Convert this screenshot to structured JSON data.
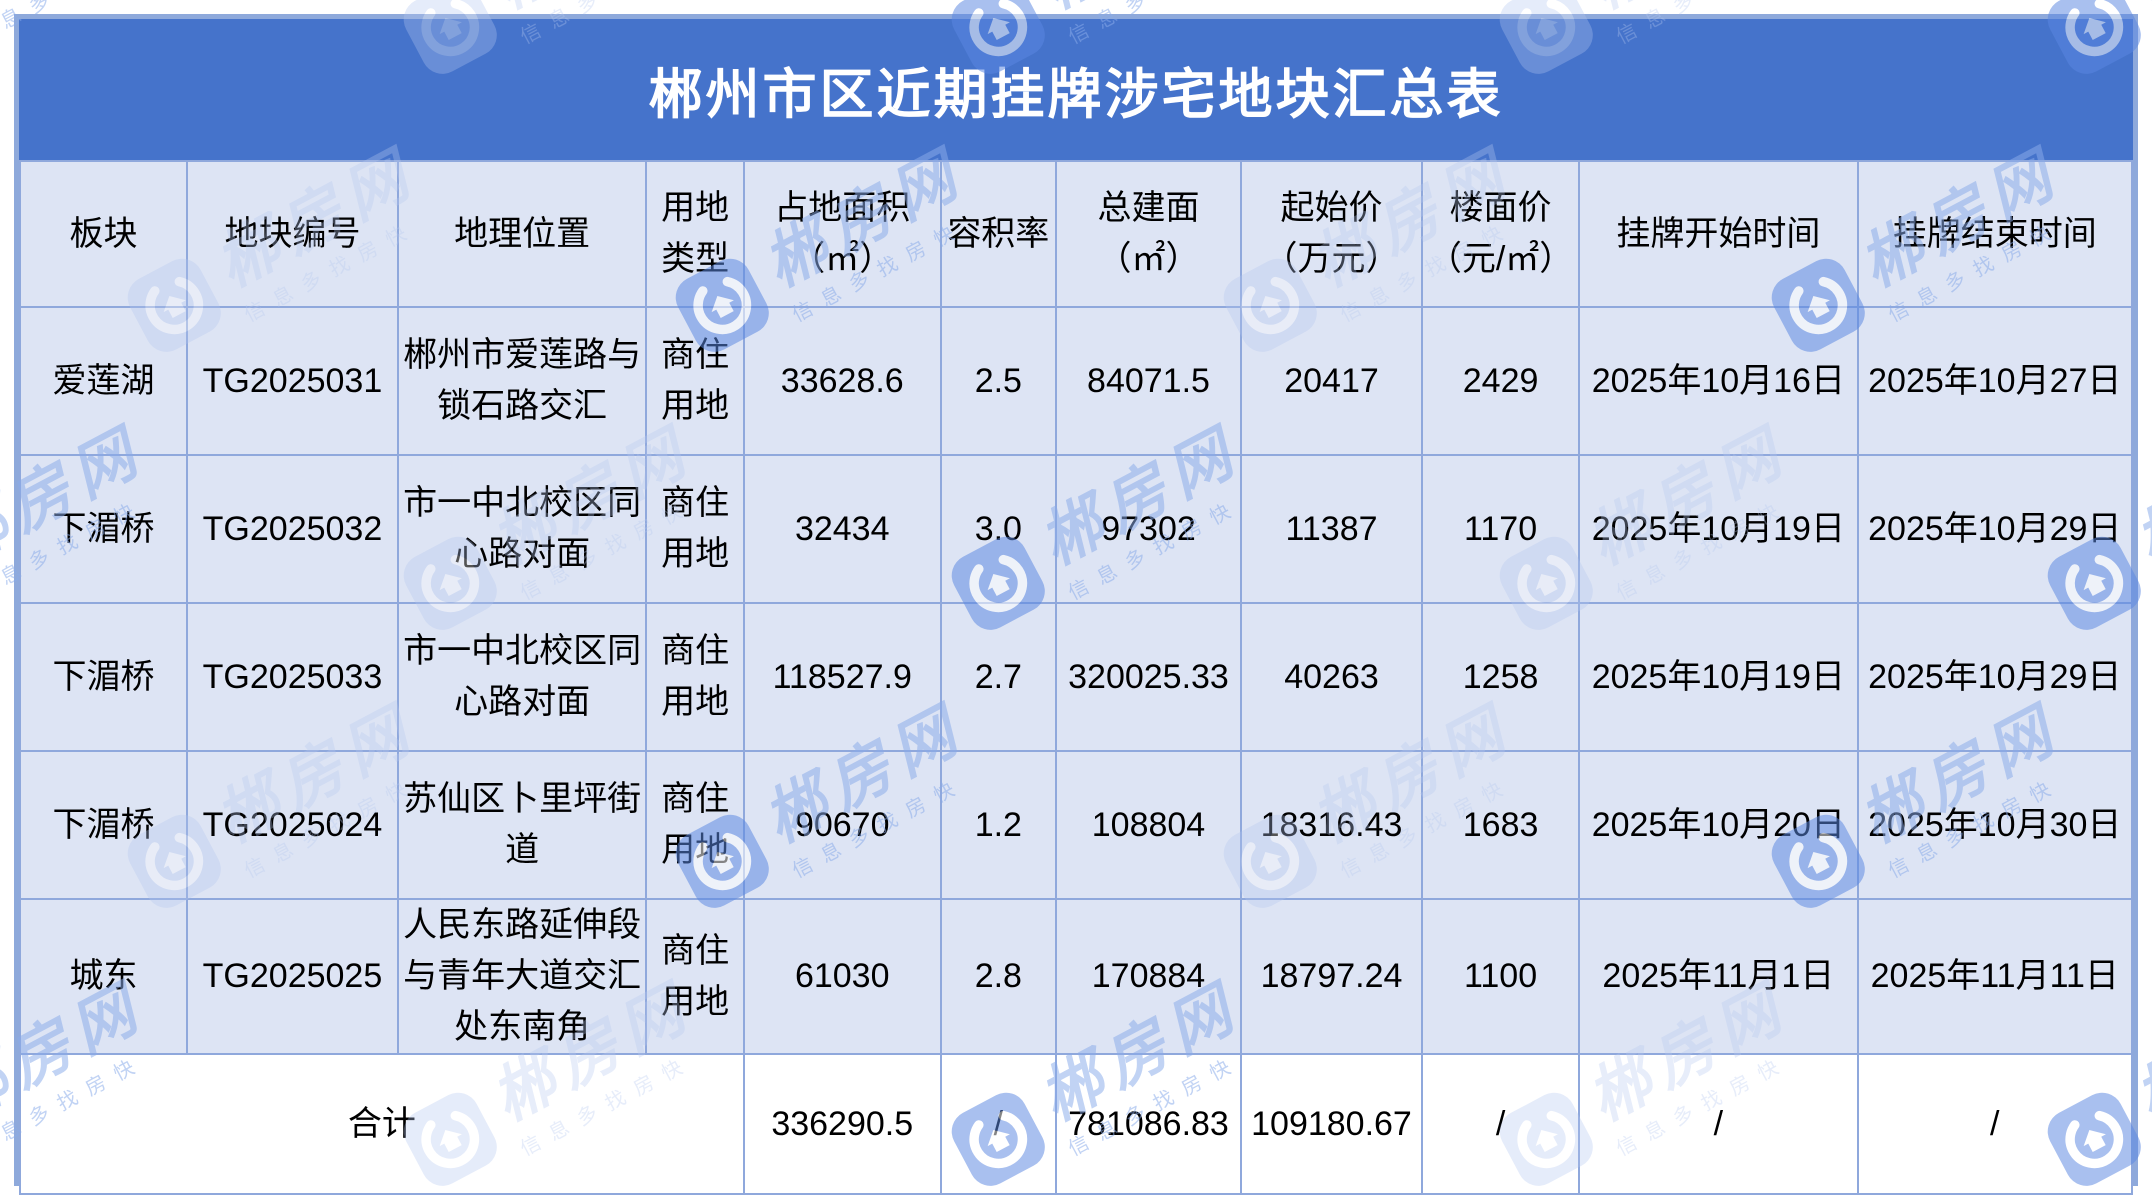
{
  "page_title": "郴州市区近期挂牌涉宅地块汇总表",
  "watermark": {
    "icon": "house-app-icon",
    "brand": "郴房网",
    "tagline": "信息多找房快",
    "accent_color": "#4573cb"
  },
  "colors": {
    "title_bar": "#4573cb",
    "cell_background": "#dde4f4",
    "grid_line": "#8fa8dc",
    "outer_border": "#8ea9db",
    "total_row_background": "#ffffff",
    "title_text": "#ffffff",
    "body_text": "#000000"
  },
  "chart_data": {
    "type": "table",
    "title": "郴州市区近期挂牌涉宅地块汇总表",
    "columns": [
      {
        "key": "district",
        "label": "板块"
      },
      {
        "key": "parcel_id",
        "label": "地块编号"
      },
      {
        "key": "location",
        "label": "地理位置"
      },
      {
        "key": "land_use",
        "label": "用地\n类型"
      },
      {
        "key": "land_area",
        "label": "占地面积\n（㎡）"
      },
      {
        "key": "plot_ratio",
        "label": "容积率"
      },
      {
        "key": "gfa",
        "label": "总建面\n（㎡）"
      },
      {
        "key": "start_price",
        "label": "起始价\n（万元）"
      },
      {
        "key": "floor_price",
        "label": "楼面价\n（元/㎡）"
      },
      {
        "key": "list_start",
        "label": "挂牌开始时间"
      },
      {
        "key": "list_end",
        "label": "挂牌结束时间"
      }
    ],
    "rows": [
      {
        "district": "爱莲湖",
        "parcel_id": "TG2025031",
        "location": "郴州市爱莲路与锁石路交汇",
        "land_use": "商住用地",
        "land_area": "33628.6",
        "plot_ratio": "2.5",
        "gfa": "84071.5",
        "start_price": "20417",
        "floor_price": "2429",
        "list_start": "2025年10月16日",
        "list_end": "2025年10月27日"
      },
      {
        "district": "下湄桥",
        "parcel_id": "TG2025032",
        "location": "市一中北校区同心路对面",
        "land_use": "商住用地",
        "land_area": "32434",
        "plot_ratio": "3.0",
        "gfa": "97302",
        "start_price": "11387",
        "floor_price": "1170",
        "list_start": "2025年10月19日",
        "list_end": "2025年10月29日"
      },
      {
        "district": "下湄桥",
        "parcel_id": "TG2025033",
        "location": "市一中北校区同心路对面",
        "land_use": "商住用地",
        "land_area": "118527.9",
        "plot_ratio": "2.7",
        "gfa": "320025.33",
        "start_price": "40263",
        "floor_price": "1258",
        "list_start": "2025年10月19日",
        "list_end": "2025年10月29日"
      },
      {
        "district": "下湄桥",
        "parcel_id": "TG2025024",
        "location": "苏仙区卜里坪街道",
        "land_use": "商住用地",
        "land_area": "90670",
        "plot_ratio": "1.2",
        "gfa": "108804",
        "start_price": "18316.43",
        "floor_price": "1683",
        "list_start": "2025年10月20日",
        "list_end": "2025年10月30日"
      },
      {
        "district": "城东",
        "parcel_id": "TG2025025",
        "location": "人民东路延伸段与青年大道交汇处东南角",
        "land_use": "商住用地",
        "land_area": "61030",
        "plot_ratio": "2.8",
        "gfa": "170884",
        "start_price": "18797.24",
        "floor_price": "1100",
        "list_start": "2025年11月1日",
        "list_end": "2025年11月11日"
      }
    ],
    "total_row": {
      "label": "合计",
      "land_area": "336290.5",
      "plot_ratio": "/",
      "gfa": "781086.83",
      "start_price": "109180.67",
      "floor_price": "/",
      "list_start": "/",
      "list_end": "/"
    }
  }
}
